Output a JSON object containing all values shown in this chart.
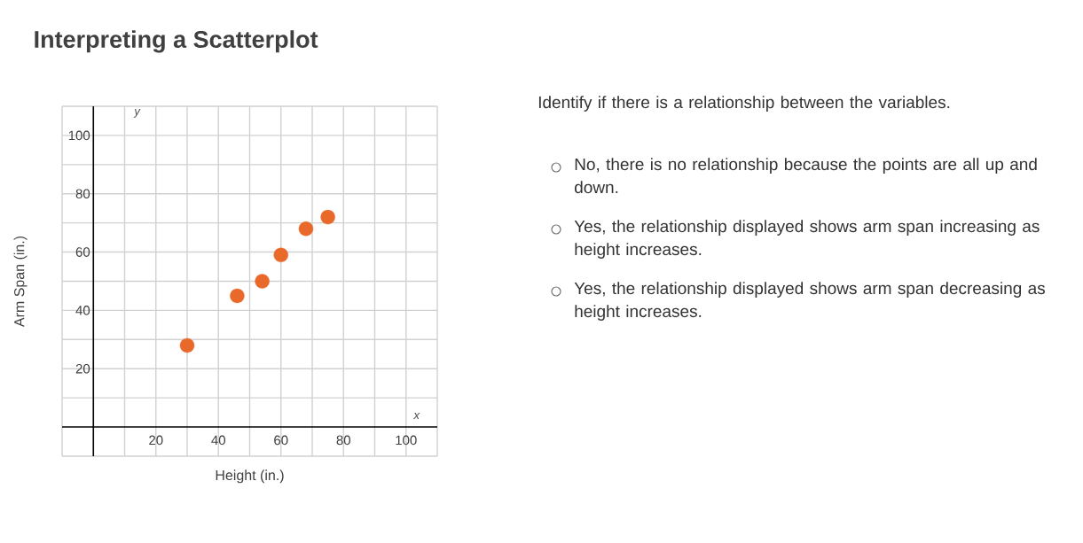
{
  "chart_data": [
    {
      "type": "scatter",
      "title": "Interpreting a Scatterplot",
      "xlabel": "Height (in.)",
      "ylabel": "Arm Span (in.)",
      "x": [
        30,
        46,
        54,
        60,
        68,
        75
      ],
      "values": [
        28,
        45,
        50,
        59,
        68,
        72
      ],
      "color": "#e8692a",
      "grid": true,
      "xlim": [
        -10,
        110
      ],
      "ylim": [
        -10,
        110
      ],
      "xticks": [
        {
          "value": -10,
          "label": null
        },
        {
          "value": 10,
          "label": null
        },
        20,
        {
          "value": 30,
          "label": null
        },
        40,
        {
          "value": 50,
          "label": null
        },
        60,
        {
          "value": 70,
          "label": null
        },
        80,
        {
          "value": 90,
          "label": null
        },
        100,
        {
          "value": 110,
          "label": null
        }
      ],
      "yticks": [
        {
          "value": -10,
          "label": null
        },
        {
          "value": 10,
          "label": null
        },
        20,
        {
          "value": 30,
          "label": null
        },
        40,
        {
          "value": 50,
          "label": null
        },
        60,
        {
          "value": 70,
          "label": null
        },
        80,
        {
          "value": 90,
          "label": null
        },
        100,
        {
          "value": 110,
          "label": null
        }
      ],
      "annotations": [
        "x",
        "y"
      ]
    },
    {
      "type": "other",
      "annotations": [
        "Identify if there is a relationship between the variables.",
        "No, there is no relationship because the points are all up and down.",
        "Yes, the relationship displayed shows arm span increasing as height increases.",
        "Yes, the relationship displayed shows arm span decreasing as height increases."
      ]
    }
  ]
}
